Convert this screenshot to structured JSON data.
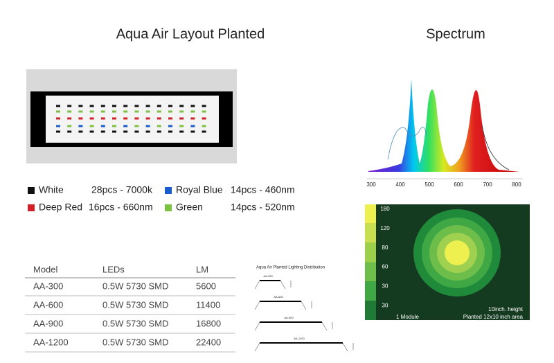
{
  "layout": {
    "title": "Aqua Air Layout Planted"
  },
  "legend": {
    "items": [
      {
        "name": "White",
        "spec": "28pcs - 7000k"
      },
      {
        "name": "Royal Blue",
        "spec": "14pcs - 460nm"
      },
      {
        "name": "Deep Red",
        "spec": "16pcs - 660nm"
      },
      {
        "name": "Green",
        "spec": "14pcs - 520nm"
      }
    ]
  },
  "table": {
    "header": [
      "Model",
      "LEDs",
      "LM"
    ],
    "rows": [
      [
        "AA-300",
        "0.5W 5730 SMD",
        "5600"
      ],
      [
        "AA-600",
        "0.5W 5730 SMD",
        "11400"
      ],
      [
        "AA-900",
        "0.5W 5730 SMD",
        "16800"
      ],
      [
        "AA-1200",
        "0.5W 5730 SMD",
        "22400"
      ]
    ]
  },
  "distribution": {
    "title": "Aqua Air Planted Lighting Distribution",
    "models": [
      "AA-300",
      "AA-600",
      "AA-900",
      "AA-1200"
    ]
  },
  "spectrum": {
    "title": "Spectrum",
    "xticks": [
      300,
      400,
      500,
      600,
      700,
      800
    ]
  },
  "par_map": {
    "scale": [
      "180",
      "120",
      "80",
      "60",
      "30",
      "30"
    ],
    "module": "1 Module",
    "height": "10inch. height",
    "area": "Planted 12x10 inch area"
  }
}
